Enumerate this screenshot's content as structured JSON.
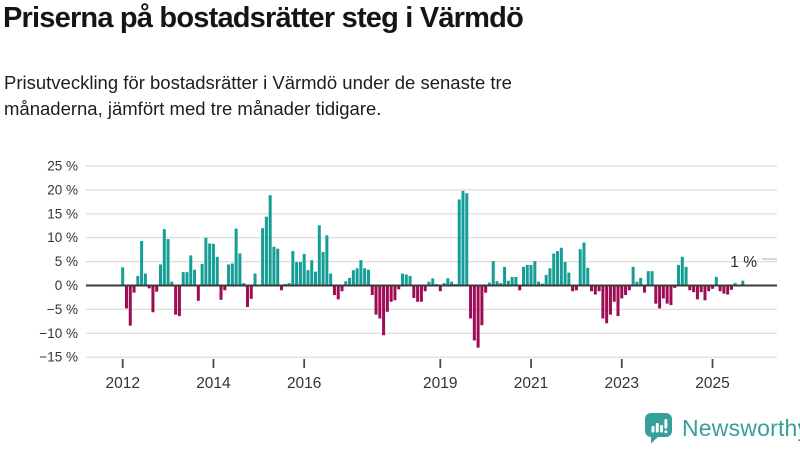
{
  "header": {
    "title": "Priserna på bostadsrätter steg i Värmdö",
    "subtitle": "Prisutveckling för bostadsrätter i Värmdö under de senaste tre\nmånaderna, jämfört med tre månader tidigare."
  },
  "chart_data": {
    "type": "bar",
    "title": "Priserna på bostadsrätter steg i Värmdö",
    "subtitle": "Prisutveckling för bostadsrätter i Värmdö under de senaste tre månaderna, jämfört med tre månader tidigare.",
    "unit": "%",
    "frequency": "monthly",
    "period_start": "2012-01",
    "period_end": "2025-09",
    "xlabel": "",
    "ylabel": "",
    "ylim": [
      -15,
      25
    ],
    "grid": true,
    "legend": "none",
    "colors": {
      "positive": "#149e96",
      "negative": "#a00b55"
    },
    "y_ticks": [
      {
        "value": 25,
        "label": "25 %"
      },
      {
        "value": 20,
        "label": "20 %"
      },
      {
        "value": 15,
        "label": "15 %"
      },
      {
        "value": 10,
        "label": "10 %"
      },
      {
        "value": 5,
        "label": "5 %"
      },
      {
        "value": 0,
        "label": "0 %"
      },
      {
        "value": -5,
        "label": "−5 %"
      },
      {
        "value": -10,
        "label": "−10 %"
      },
      {
        "value": -15,
        "label": "−15 %"
      }
    ],
    "x_ticks": [
      {
        "year": 2012,
        "label": "2012"
      },
      {
        "year": 2014,
        "label": "2014"
      },
      {
        "year": 2016,
        "label": "2016"
      },
      {
        "year": 2019,
        "label": "2019"
      },
      {
        "year": 2021,
        "label": "2021"
      },
      {
        "year": 2023,
        "label": "2023"
      },
      {
        "year": 2025,
        "label": "2025"
      }
    ],
    "annotation_label": "1 %",
    "values": [
      3.8,
      -4.8,
      -8.4,
      -1.5,
      2.0,
      9.3,
      2.5,
      -0.6,
      -5.6,
      -1.3,
      4.4,
      11.8,
      9.7,
      0.8,
      -6.1,
      -6.4,
      2.8,
      2.8,
      6.3,
      3.3,
      -3.2,
      4.5,
      10.0,
      8.8,
      8.7,
      6.0,
      -3.0,
      -1.0,
      4.4,
      4.6,
      11.9,
      6.7,
      0.5,
      -4.5,
      -2.8,
      2.5,
      0.0,
      12.0,
      14.4,
      18.9,
      8.1,
      7.7,
      -1.0,
      0.3,
      0.5,
      7.2,
      4.9,
      4.9,
      6.6,
      3.2,
      5.3,
      2.9,
      12.6,
      7.0,
      10.5,
      2.5,
      -2.0,
      -2.9,
      -1.2,
      0.9,
      1.6,
      3.2,
      3.6,
      5.3,
      3.6,
      3.3,
      -2.0,
      -6.1,
      -6.9,
      -10.4,
      -5.5,
      -3.4,
      -3.1,
      -0.8,
      2.5,
      2.3,
      2.0,
      -2.6,
      -3.4,
      -3.4,
      -1.2,
      0.8,
      1.5,
      0.3,
      -1.2,
      0.5,
      1.5,
      0.8,
      0.3,
      18.0,
      19.8,
      19.3,
      -6.9,
      -11.5,
      -13.0,
      -8.3,
      -1.5,
      0.6,
      5.1,
      0.9,
      0.5,
      3.9,
      1.0,
      1.8,
      1.8,
      -1.0,
      3.9,
      4.3,
      4.3,
      5.1,
      0.8,
      0.4,
      2.2,
      3.6,
      6.7,
      7.2,
      7.9,
      4.9,
      2.7,
      -1.2,
      -1.0,
      7.6,
      9.0,
      3.7,
      -1.2,
      -1.9,
      -1.2,
      -6.9,
      -7.9,
      -6.1,
      -3.4,
      -6.4,
      -2.7,
      -2.0,
      -1.0,
      3.9,
      0.8,
      1.6,
      -1.5,
      3.0,
      3.0,
      -3.8,
      -4.8,
      -2.7,
      -3.8,
      -4.1,
      -0.5,
      4.3,
      6.0,
      3.9,
      -1.0,
      -1.4,
      -2.9,
      -1.4,
      -3.1,
      -1.2,
      -0.7,
      1.8,
      -1.2,
      -1.7,
      -1.9,
      -0.9,
      0.5,
      0.0,
      1.0
    ]
  },
  "branding": {
    "name": "Newsworthy",
    "color": "#38a09a",
    "icon": "newsworthy-bubble-chart-icon"
  }
}
